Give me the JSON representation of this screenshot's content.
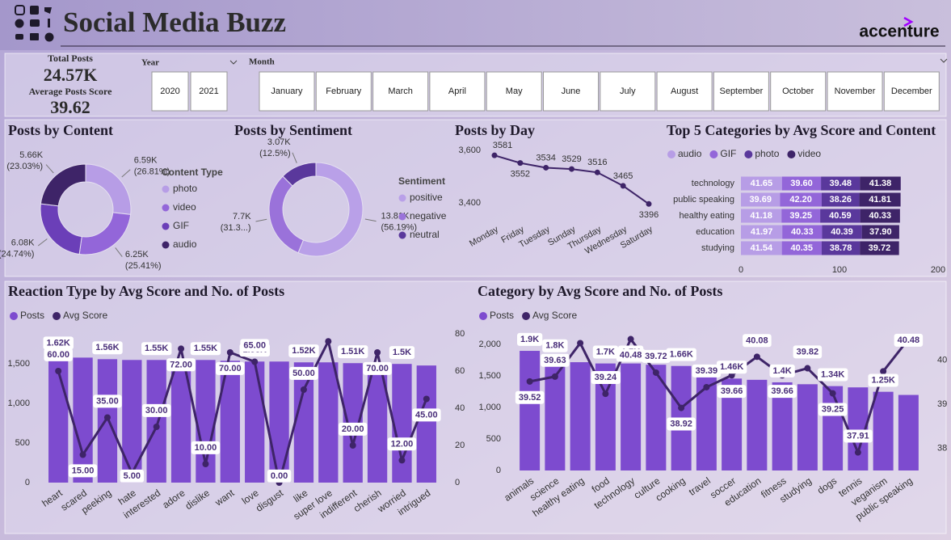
{
  "header": {
    "title": "Social Media Buzz",
    "logo": "accenture"
  },
  "kpis": [
    {
      "label": "Total Posts",
      "value": "24.57K"
    },
    {
      "label": "Average Posts Score",
      "value": "39.62"
    }
  ],
  "slicers": {
    "year": {
      "label": "Year",
      "options": [
        "2020",
        "2021"
      ]
    },
    "month": {
      "label": "Month",
      "options": [
        "January",
        "February",
        "March",
        "April",
        "May",
        "June",
        "July",
        "August",
        "September",
        "October",
        "November",
        "December"
      ]
    }
  },
  "chart_data": [
    {
      "type": "donut",
      "title": "Posts by Content",
      "legend_title": "Content Type",
      "categories": [
        "photo",
        "video",
        "GIF",
        "audio"
      ],
      "values": [
        6590,
        6250,
        6080,
        5660
      ],
      "value_labels": [
        "6.59K",
        "6.25K",
        "6.08K",
        "5.66K"
      ],
      "percents": [
        26.81,
        25.41,
        24.74,
        23.03
      ],
      "percent_labels": [
        "(26.81%)",
        "(25.41%)",
        "(24.74%)",
        "(23.03%)"
      ],
      "colors": [
        "#b79de6",
        "#9366d9",
        "#6b3fb8",
        "#3e2468"
      ]
    },
    {
      "type": "donut",
      "title": "Posts by Sentiment",
      "legend_title": "Sentiment",
      "categories": [
        "positive",
        "negative",
        "neutral"
      ],
      "values": [
        13810,
        7700,
        3070
      ],
      "value_labels": [
        "13.81K",
        "7.7K",
        "3.07K"
      ],
      "percents": [
        56.19,
        31.3,
        12.5
      ],
      "percent_labels": [
        "(56.19%)",
        "(31.3...)",
        "(12.5%)"
      ],
      "colors": [
        "#b9a0e8",
        "#9a72da",
        "#5a389c"
      ]
    },
    {
      "type": "line",
      "title": "Posts by Day",
      "categories": [
        "Monday",
        "Friday",
        "Tuesday",
        "Sunday",
        "Thursday",
        "Wednesday",
        "Saturday"
      ],
      "values": [
        3581,
        3552,
        3534,
        3529,
        3516,
        3465,
        3396
      ],
      "ylim": [
        3380,
        3610
      ],
      "yticks": [
        {
          "value": 3400,
          "label": "3,400"
        },
        {
          "value": 3600,
          "label": "3,600"
        }
      ],
      "color": "#3e2468"
    },
    {
      "type": "stacked_hbar",
      "title": "Top 5 Categories by Avg Score and Content",
      "categories": [
        "technology",
        "public speaking",
        "healthy eating",
        "education",
        "studying"
      ],
      "series": [
        {
          "name": "audio",
          "color": "#b79de6",
          "values": [
            41.65,
            39.69,
            41.18,
            41.97,
            41.54
          ],
          "value_labels": [
            "41.65",
            "39.69",
            "41.18",
            "41.97",
            "41.54"
          ]
        },
        {
          "name": "GIF",
          "color": "#9366d9",
          "values": [
            39.6,
            42.2,
            39.25,
            40.33,
            40.35
          ],
          "value_labels": [
            "39.60",
            "42.20",
            "39.25",
            "40.33",
            "40.35"
          ]
        },
        {
          "name": "photo",
          "color": "#5a389c",
          "values": [
            39.48,
            38.26,
            40.59,
            40.39,
            38.78
          ],
          "value_labels": [
            "39.48",
            "38.26",
            "40.59",
            "40.39",
            "38.78"
          ]
        },
        {
          "name": "video",
          "color": "#3e2468",
          "values": [
            41.38,
            41.81,
            40.33,
            37.9,
            39.72
          ],
          "value_labels": [
            "41.38",
            "41.81",
            "40.33",
            "37.90",
            "39.72"
          ]
        }
      ],
      "xlim": [
        0,
        200
      ],
      "xticks": [
        0,
        100,
        200
      ]
    },
    {
      "type": "combo",
      "title": "Reaction Type by Avg Score and No. of Posts",
      "categories": [
        "heart",
        "scared",
        "peeking",
        "hate",
        "interested",
        "adore",
        "dislike",
        "want",
        "love",
        "disgust",
        "like",
        "super love",
        "indifferent",
        "cherish",
        "worried",
        "intrigued"
      ],
      "series": [
        {
          "name": "Posts",
          "mark": "bar",
          "color": "#7d4bcf",
          "values": [
            1620,
            1580,
            1560,
            1550,
            1550,
            1550,
            1550,
            1540,
            1530,
            1530,
            1520,
            1520,
            1510,
            1510,
            1500,
            1480
          ],
          "value_labels": [
            "1.62K",
            null,
            "1.56K",
            null,
            "1.55K",
            null,
            "1.55K",
            null,
            "1.53K",
            null,
            "1.52K",
            null,
            "1.51K",
            null,
            "1.5K",
            null
          ]
        },
        {
          "name": "Avg Score",
          "mark": "line",
          "axis": "y2",
          "color": "#3e2468",
          "values": [
            60,
            15,
            35,
            5,
            30,
            72,
            10,
            70,
            65,
            0,
            50,
            76,
            20,
            70,
            12,
            45
          ],
          "value_labels": [
            "60.00",
            "15.00",
            "35.00",
            "5.00",
            "30.00",
            "72.00",
            "10.00",
            "70.00",
            "65.00",
            "0.00",
            "50.00",
            null,
            "20.00",
            "70.00",
            "12.00",
            "45.00"
          ]
        }
      ],
      "ylim": [
        0,
        1880
      ],
      "yticks": [
        0,
        500,
        {
          "value": 1000,
          "label": "1,000"
        },
        {
          "value": 1500,
          "label": "1,500"
        }
      ],
      "y2lim": [
        0,
        80
      ],
      "y2ticks": [
        0,
        20,
        40,
        60,
        80
      ]
    },
    {
      "type": "combo",
      "title": "Category by Avg Score and No. of Posts",
      "categories": [
        "animals",
        "science",
        "healthy eating",
        "food",
        "technology",
        "culture",
        "cooking",
        "travel",
        "soccer",
        "education",
        "fitness",
        "studying",
        "dogs",
        "tennis",
        "veganism",
        "public speaking"
      ],
      "series": [
        {
          "name": "Posts",
          "mark": "bar",
          "color": "#7d4bcf",
          "values": [
            1900,
            1800,
            1720,
            1700,
            1700,
            1680,
            1660,
            1620,
            1460,
            1440,
            1400,
            1370,
            1340,
            1320,
            1250,
            1200
          ],
          "value_labels": [
            "1.9K",
            "1.8K",
            null,
            "1.7K",
            "1.7K",
            null,
            "1.66K",
            null,
            "1.46K",
            null,
            "1.4K",
            null,
            "1.34K",
            null,
            "1.25K",
            null
          ]
        },
        {
          "name": "Avg Score",
          "mark": "line",
          "axis": "y2",
          "color": "#3e2468",
          "values": [
            39.52,
            39.63,
            40.39,
            39.24,
            40.48,
            39.72,
            38.92,
            39.39,
            39.66,
            40.08,
            39.66,
            39.82,
            39.25,
            37.91,
            39.75,
            40.48
          ],
          "value_labels": [
            "39.52",
            "39.63",
            null,
            "39.24",
            "40.48",
            "39.72",
            "38.92",
            "39.39",
            "39.66",
            "40.08",
            "39.66",
            "39.82",
            "39.25",
            "37.91",
            null,
            "40.48"
          ]
        }
      ],
      "ylim": [
        0,
        2170
      ],
      "yticks": [
        0,
        500,
        {
          "value": 1000,
          "label": "1,000"
        },
        {
          "value": 1500,
          "label": "1,500"
        },
        {
          "value": 2000,
          "label": "2,000"
        }
      ],
      "y2lim": [
        37.5,
        40.6
      ],
      "y2ticks": [
        38,
        39,
        40
      ]
    }
  ]
}
